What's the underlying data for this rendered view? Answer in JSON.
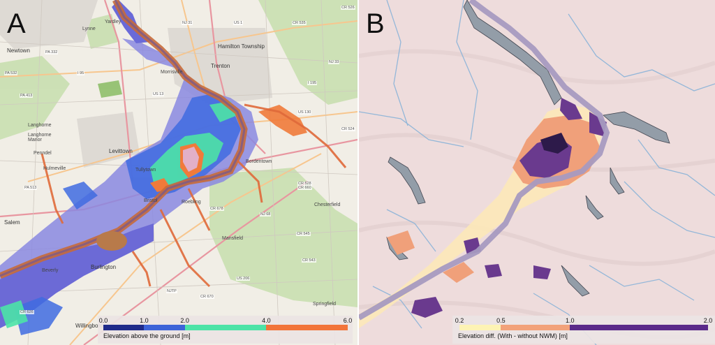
{
  "panel_a": {
    "letter": "A",
    "labels": {
      "newtown": "Newtown",
      "lynne": "Lynne",
      "yardley": "Yardley",
      "hamilton": "Hamilton Township",
      "trenton": "Trenton",
      "morrisville": "Morrisville",
      "langhorne": "Langhorne",
      "langhorne_manor": "Langhorne\nManor",
      "penndel": "Penndel",
      "hulmeville": "Hulmeville",
      "levittown": "Levittown",
      "tullytown": "Tullytown",
      "bristol": "Bristol",
      "burlington": "Burlington",
      "salem": "Salem",
      "willingboro": "Willingboro",
      "mansfield": "Mansfield",
      "chesterfield": "Chesterfield",
      "bordentown": "Bordentown",
      "springfield": "Springfield",
      "beverly": "Beverly",
      "roebling": "Roebling",
      "nj31": "NJ 31",
      "us1": "US 1",
      "cr535": "CR 535",
      "cr526": "CR 526",
      "i95": "I 95",
      "pa332": "PA 332",
      "pa532": "PA 532",
      "pa413": "PA 413",
      "pa513": "PA 513",
      "us13": "US 13",
      "us130": "US 130",
      "cr524": "CR 524",
      "cr528": "CR 528\nCR 660",
      "cr678": "CR 678",
      "nj68": "NJ 68",
      "cr545": "CR 545",
      "cr543": "CR 543",
      "us206": "US 206",
      "ntp": "NJTP",
      "cr670": "CR 670",
      "cr626": "CR 626",
      "nj33": "NJ 33",
      "i195": "I 195"
    },
    "legend": {
      "ticks": [
        "0.0",
        "1.0",
        "2.0",
        "4.0",
        "6.0"
      ],
      "tick_values": [
        0,
        1,
        2,
        4,
        6
      ],
      "title": "Elevation above the ground [m]",
      "segments": [
        {
          "from": 0,
          "to": 1,
          "color": "#1f2a8a"
        },
        {
          "from": 1,
          "to": 2,
          "color": "#3d63d8"
        },
        {
          "from": 2,
          "to": 4,
          "color": "#4de3a7"
        },
        {
          "from": 4,
          "to": 6,
          "color": "#f2743a"
        }
      ]
    }
  },
  "panel_b": {
    "letter": "B",
    "legend": {
      "ticks": [
        "0.2",
        "0.5",
        "1.0",
        "2.0"
      ],
      "tick_values": [
        0.2,
        0.5,
        1.0,
        2.0
      ],
      "title": "Elevation diff. (With - without NWM) [m]",
      "segments": [
        {
          "from": 0.2,
          "to": 0.5,
          "color": "#fdf3b4"
        },
        {
          "from": 0.5,
          "to": 1.0,
          "color": "#f2a27a"
        },
        {
          "from": 1.0,
          "to": 2.0,
          "color": "#5a2a8a"
        }
      ]
    }
  }
}
